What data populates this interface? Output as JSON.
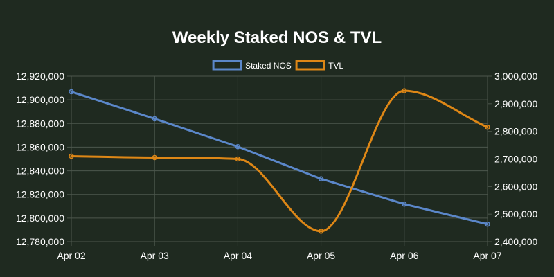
{
  "chart_data": {
    "type": "line",
    "title": "Weekly Staked NOS & TVL",
    "categories": [
      "Apr 02",
      "Apr 03",
      "Apr 04",
      "Apr 05",
      "Apr 06",
      "Apr 07"
    ],
    "series": [
      {
        "name": "Staked NOS",
        "axis": "left",
        "color": "#5b87c9",
        "values": [
          12906800,
          12884000,
          12860400,
          12833200,
          12811800,
          12794800
        ]
      },
      {
        "name": "TVL",
        "axis": "right",
        "color": "#de8716",
        "values": [
          2710000,
          2705000,
          2700000,
          2438000,
          2947000,
          2815000
        ]
      }
    ],
    "y_left": {
      "min": 12780000,
      "max": 12920000,
      "ticks": [
        12920000,
        12900000,
        12880000,
        12860000,
        12840000,
        12820000,
        12800000,
        12780000
      ],
      "tick_labels": [
        "12,920,000",
        "12,900,000",
        "12,880,000",
        "12,860,000",
        "12,840,000",
        "12,820,000",
        "12,800,000",
        "12,780,000"
      ]
    },
    "y_right": {
      "min": 2400000,
      "max": 3000000,
      "ticks": [
        3000000,
        2900000,
        2800000,
        2700000,
        2600000,
        2500000,
        2400000
      ],
      "tick_labels": [
        "3,000,000",
        "2,900,000",
        "2,800,000",
        "2,700,000",
        "2,600,000",
        "2,500,000",
        "2,400,000"
      ]
    },
    "legend_position": "top-center",
    "grid": true,
    "colors": {
      "background": "#1f2a20",
      "grid": "#4d574d",
      "text": "#ffffff"
    }
  }
}
